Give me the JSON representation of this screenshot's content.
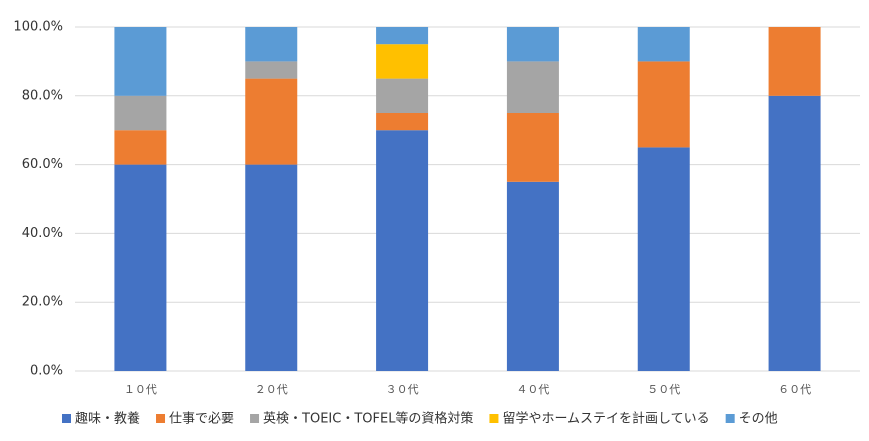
{
  "chart_data": {
    "type": "stacked_bar",
    "categories": [
      "１０代",
      "２０代",
      "３０代",
      "４０代",
      "５０代",
      "６０代"
    ],
    "series": [
      {
        "name": "趣味・教養",
        "color": "#4472c4",
        "values": [
          60,
          60,
          70,
          55,
          65,
          80
        ]
      },
      {
        "name": "仕事で必要",
        "color": "#ed7d31",
        "values": [
          10,
          25,
          5,
          20,
          25,
          20
        ]
      },
      {
        "name": "英検・TOEIC・TOFEL等の資格対策",
        "color": "#a5a5a5",
        "values": [
          10,
          5,
          10,
          15,
          0,
          0
        ]
      },
      {
        "name": "留学やホームステイを計画している",
        "color": "#ffc000",
        "values": [
          0,
          0,
          10,
          0,
          0,
          0
        ]
      },
      {
        "name": "その他",
        "color": "#5b9bd5",
        "values": [
          20,
          10,
          5,
          10,
          10,
          0
        ]
      }
    ],
    "ylim": [
      0,
      100
    ],
    "yticks": [
      {
        "value": 0,
        "label": "0.0%"
      },
      {
        "value": 20,
        "label": "20.0%"
      },
      {
        "value": 40,
        "label": "40.0%"
      },
      {
        "value": 60,
        "label": "60.0%"
      },
      {
        "value": 80,
        "label": "80.0%"
      },
      {
        "value": 100,
        "label": "100.0%"
      }
    ],
    "grid": true,
    "legend": "bottom"
  }
}
